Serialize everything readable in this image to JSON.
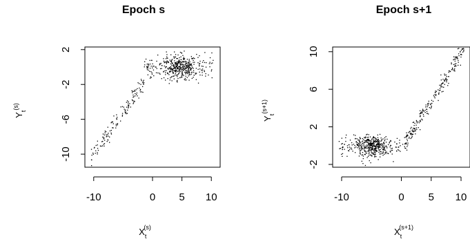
{
  "chart_data": [
    {
      "type": "scatter",
      "title": "Epoch s",
      "xlabel": {
        "base": "X",
        "sub": "t",
        "sup": "(s)"
      },
      "ylabel": {
        "base": "Y",
        "sub": "t",
        "sup": "(s)"
      },
      "xlim": [
        -11.5,
        11.5
      ],
      "ylim": [
        -11.5,
        2.3
      ],
      "xticks": [
        -10,
        0,
        5,
        10
      ],
      "xtick_labels": [
        "-10",
        "0",
        "5",
        "10"
      ],
      "yticks": [
        2,
        -2,
        -6,
        -10
      ],
      "ytick_labels": [
        "2",
        "-2",
        "-6",
        "-10"
      ],
      "grid": false,
      "description_of_pattern": "negative-x branch rises linearly to a flat cluster near y=0 for x>0",
      "point_groups": [
        {
          "x_range": [
            -10.5,
            -1.5
          ],
          "trend": "linear",
          "y_at_x_min": -10.5,
          "y_at_x_max": -1.5,
          "spread": 0.5,
          "count": 140
        },
        {
          "x_range": [
            -1.5,
            10.5
          ],
          "trend": "flat",
          "y_center": 0.0,
          "spread": 0.7,
          "count": 460
        }
      ]
    },
    {
      "type": "scatter",
      "title": "Epoch s+1",
      "xlabel": {
        "base": "X",
        "sub": "t",
        "sup": "(s+1)"
      },
      "ylabel": {
        "base": "Y",
        "sub": "t",
        "sup": "(s+1)"
      },
      "xlim": [
        -11.5,
        11.5
      ],
      "ylim": [
        -2.3,
        10.5
      ],
      "xticks": [
        -10,
        0,
        5,
        10
      ],
      "xtick_labels": [
        "-10",
        "0",
        "5",
        "10"
      ],
      "yticks": [
        10,
        6,
        2,
        -2
      ],
      "ytick_labels": [
        "10",
        "6",
        "2",
        "-2"
      ],
      "grid": false,
      "description_of_pattern": "flat cluster near y=0 for x<0, rising linearly for x>0 up to about 10",
      "point_groups": [
        {
          "x_range": [
            -10.5,
            0.5
          ],
          "trend": "flat",
          "y_center": 0.0,
          "spread": 0.55,
          "count": 460
        },
        {
          "x_range": [
            0.5,
            10.5
          ],
          "trend": "linear",
          "y_at_x_min": 0.3,
          "y_at_x_max": 10.3,
          "spread": 0.45,
          "count": 230
        }
      ]
    }
  ]
}
